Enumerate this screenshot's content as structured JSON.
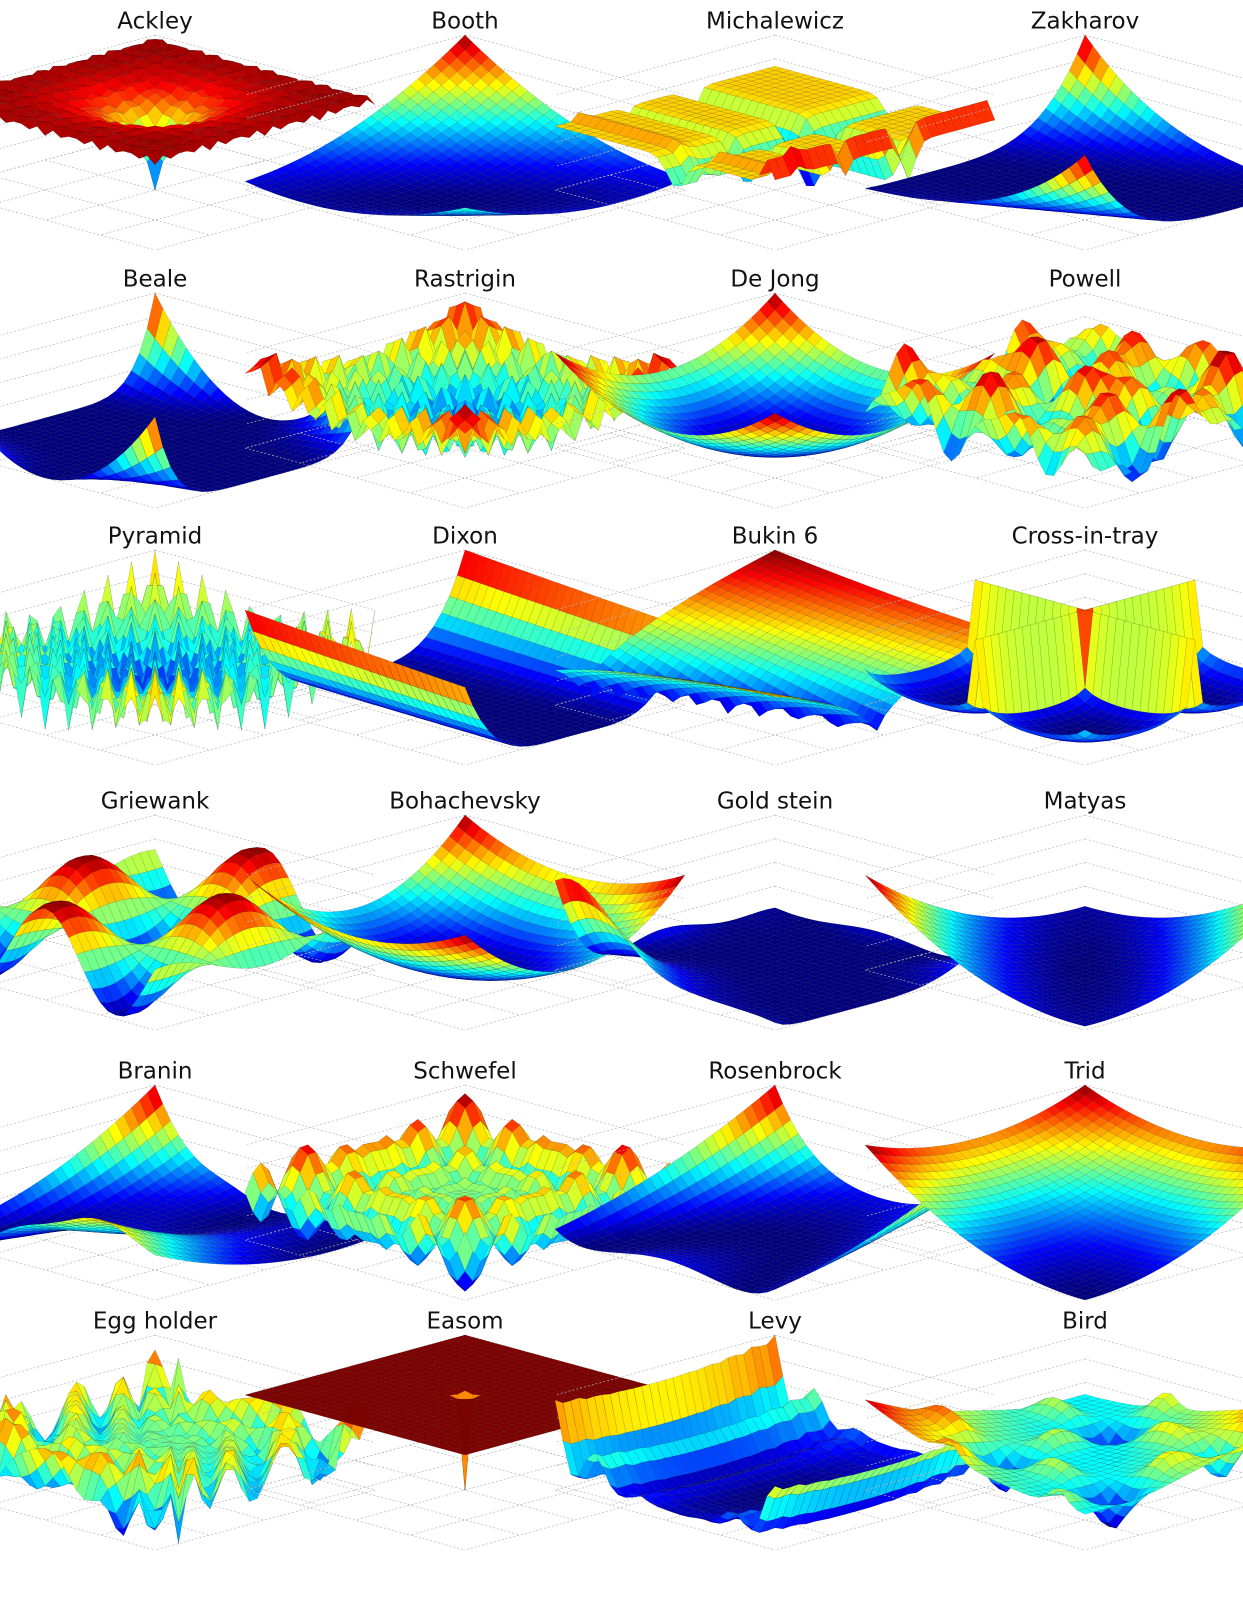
{
  "panels": [
    {
      "title": "Ackley"
    },
    {
      "title": "Booth"
    },
    {
      "title": "Michalewicz"
    },
    {
      "title": "Zakharov"
    },
    {
      "title": "Beale"
    },
    {
      "title": "Rastrigin"
    },
    {
      "title": "De Jong"
    },
    {
      "title": "Powell"
    },
    {
      "title": "Pyramid"
    },
    {
      "title": "Dixon"
    },
    {
      "title": "Bukin 6"
    },
    {
      "title": "Cross-in-tray"
    },
    {
      "title": "Griewank"
    },
    {
      "title": "Bohachevsky"
    },
    {
      "title": "Gold stein"
    },
    {
      "title": "Matyas"
    },
    {
      "title": "Branin"
    },
    {
      "title": "Schwefel"
    },
    {
      "title": "Rosenbrock"
    },
    {
      "title": "Trid"
    },
    {
      "title": "Egg holder"
    },
    {
      "title": "Easom"
    },
    {
      "title": "Levy"
    },
    {
      "title": "Bird"
    }
  ]
}
